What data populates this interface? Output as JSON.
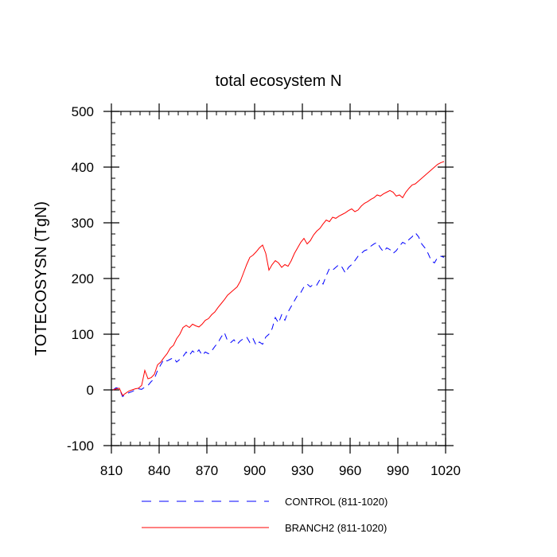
{
  "chart_data": {
    "type": "line",
    "title": "total ecosystem N",
    "xlabel": "",
    "ylabel": "TOTECOSYSN  (TgN)",
    "xlim": [
      810,
      1020
    ],
    "ylim": [
      -100,
      500
    ],
    "xticks": [
      810,
      840,
      870,
      900,
      930,
      960,
      990,
      1020
    ],
    "yticks": [
      -100,
      0,
      100,
      200,
      300,
      400,
      500
    ],
    "x_minor_step": 6,
    "y_minor_step": 20,
    "grid": false,
    "legend_position": "bottom",
    "series": [
      {
        "name": "CONTROL (811-1020)",
        "color": "#0000ff",
        "style": "dashed",
        "x": [
          811,
          813,
          815,
          817,
          819,
          821,
          823,
          825,
          827,
          829,
          831,
          833,
          835,
          837,
          839,
          841,
          843,
          845,
          847,
          849,
          851,
          853,
          855,
          857,
          859,
          861,
          863,
          865,
          867,
          869,
          871,
          873,
          875,
          877,
          879,
          881,
          883,
          885,
          887,
          889,
          891,
          893,
          895,
          897,
          899,
          901,
          903,
          905,
          907,
          909,
          911,
          913,
          915,
          917,
          919,
          921,
          923,
          925,
          927,
          929,
          931,
          933,
          935,
          937,
          939,
          941,
          943,
          945,
          947,
          949,
          951,
          953,
          955,
          957,
          959,
          961,
          963,
          965,
          967,
          969,
          971,
          973,
          975,
          977,
          979,
          981,
          983,
          985,
          987,
          989,
          991,
          993,
          995,
          997,
          999,
          1001,
          1003,
          1005,
          1007,
          1009,
          1011,
          1013,
          1015,
          1017,
          1019
        ],
        "values": [
          0,
          4,
          2,
          -12,
          -8,
          -5,
          -3,
          0,
          2,
          1,
          5,
          8,
          15,
          20,
          35,
          45,
          55,
          52,
          55,
          58,
          50,
          55,
          60,
          68,
          62,
          70,
          65,
          72,
          62,
          68,
          65,
          70,
          78,
          85,
          95,
          103,
          88,
          85,
          90,
          82,
          88,
          92,
          95,
          85,
          92,
          80,
          86,
          82,
          95,
          100,
          110,
          130,
          120,
          135,
          125,
          140,
          150,
          160,
          170,
          175,
          185,
          190,
          185,
          190,
          188,
          198,
          190,
          205,
          218,
          215,
          220,
          225,
          220,
          210,
          220,
          225,
          232,
          240,
          245,
          250,
          252,
          258,
          262,
          265,
          255,
          248,
          255,
          252,
          245,
          250,
          258,
          265,
          262,
          270,
          275,
          282,
          275,
          262,
          255,
          245,
          232,
          228,
          238,
          240,
          238
        ]
      },
      {
        "name": "BRANCH2 (811-1020)",
        "color": "#ff0000",
        "style": "solid",
        "x": [
          811,
          813,
          815,
          817,
          819,
          821,
          823,
          825,
          827,
          829,
          831,
          833,
          835,
          837,
          839,
          841,
          843,
          845,
          847,
          849,
          851,
          853,
          855,
          857,
          859,
          861,
          863,
          865,
          867,
          869,
          871,
          873,
          875,
          877,
          879,
          881,
          883,
          885,
          887,
          889,
          891,
          893,
          895,
          897,
          899,
          901,
          903,
          905,
          907,
          909,
          911,
          913,
          915,
          917,
          919,
          921,
          923,
          925,
          927,
          929,
          931,
          933,
          935,
          937,
          939,
          941,
          943,
          945,
          947,
          949,
          951,
          953,
          955,
          957,
          959,
          961,
          963,
          965,
          967,
          969,
          971,
          973,
          975,
          977,
          979,
          981,
          983,
          985,
          987,
          989,
          991,
          993,
          995,
          997,
          999,
          1001,
          1003,
          1005,
          1007,
          1009,
          1011,
          1013,
          1015,
          1017,
          1019
        ],
        "values": [
          0,
          2,
          3,
          -10,
          -6,
          -2,
          0,
          2,
          3,
          8,
          35,
          20,
          22,
          28,
          45,
          50,
          58,
          65,
          75,
          80,
          92,
          100,
          112,
          116,
          112,
          118,
          115,
          113,
          118,
          125,
          128,
          135,
          140,
          148,
          155,
          162,
          170,
          175,
          180,
          185,
          195,
          210,
          225,
          238,
          242,
          248,
          255,
          260,
          245,
          215,
          225,
          232,
          228,
          220,
          225,
          222,
          232,
          245,
          255,
          265,
          272,
          262,
          268,
          278,
          285,
          290,
          298,
          305,
          302,
          310,
          308,
          312,
          315,
          318,
          322,
          325,
          320,
          323,
          330,
          335,
          338,
          342,
          345,
          350,
          348,
          352,
          355,
          358,
          355,
          348,
          350,
          345,
          355,
          362,
          368,
          370,
          375,
          380,
          385,
          390,
          395,
          400,
          405,
          408,
          410
        ]
      }
    ]
  }
}
